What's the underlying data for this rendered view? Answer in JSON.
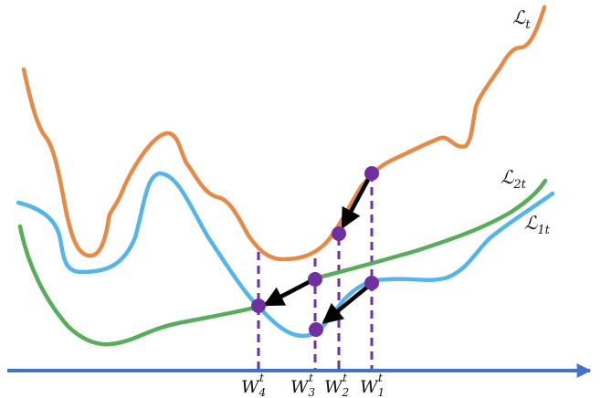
{
  "colors": {
    "loss_total": "#e58a47",
    "loss_2": "#58ad5b",
    "loss_1": "#55b4ea",
    "axis": "#4472c4",
    "point": "#7030a0",
    "arrow": "#000000",
    "dashed": "#7030a0"
  },
  "curve_labels": {
    "loss_total": {
      "symbol": "ℒ",
      "sub": "t"
    },
    "loss_2": {
      "symbol": "ℒ",
      "sub": "2t"
    },
    "loss_1": {
      "symbol": "ℒ",
      "sub": "1t"
    }
  },
  "weights": [
    {
      "symbol": "W",
      "sub": "4",
      "sup": "t"
    },
    {
      "symbol": "W",
      "sub": "3",
      "sup": "t"
    },
    {
      "symbol": "W",
      "sub": "2",
      "sup": "t"
    },
    {
      "symbol": "W",
      "sub": "1",
      "sup": "t"
    }
  ]
}
